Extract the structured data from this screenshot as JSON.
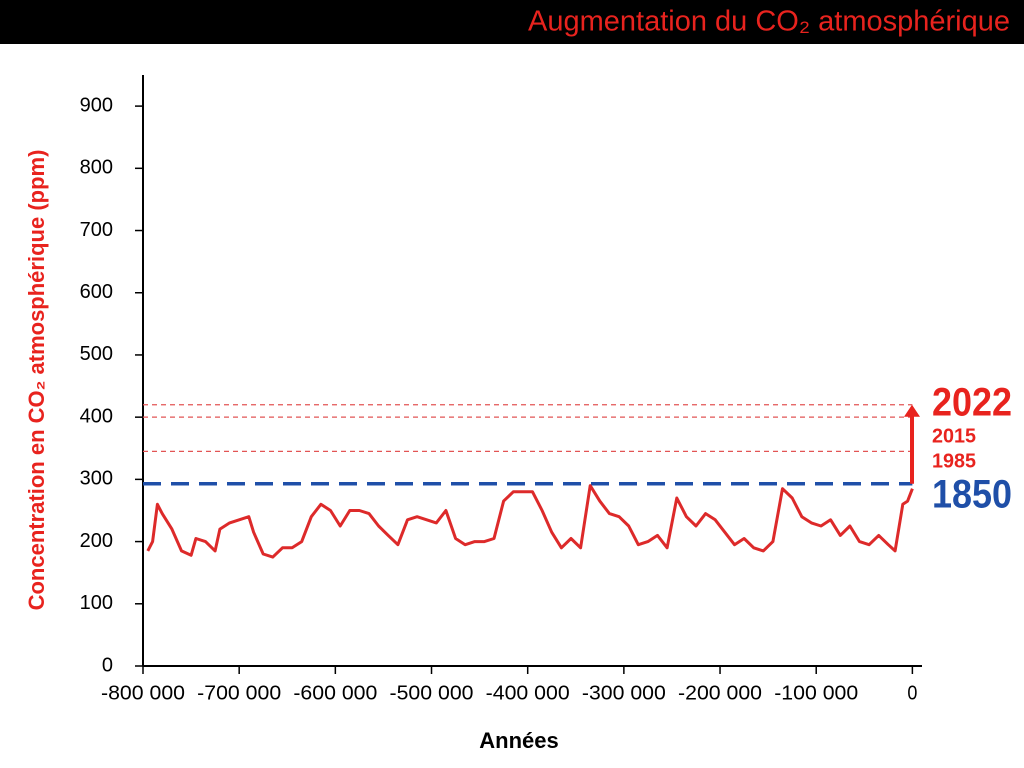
{
  "chart_data": {
    "type": "line",
    "title": "Augmentation du CO₂ atmosphérique",
    "xlabel": "Années",
    "ylabel": "Concentration en CO₂ atmosphérique (ppm)",
    "series": [
      {
        "name": "CO₂",
        "color": "#dd2a2a",
        "x": [
          -795000,
          -790000,
          -785000,
          -780000,
          -770000,
          -760000,
          -750000,
          -745000,
          -735000,
          -725000,
          -720000,
          -710000,
          -700000,
          -690000,
          -685000,
          -675000,
          -665000,
          -655000,
          -645000,
          -635000,
          -625000,
          -615000,
          -605000,
          -595000,
          -585000,
          -575000,
          -565000,
          -555000,
          -545000,
          -535000,
          -525000,
          -515000,
          -505000,
          -495000,
          -485000,
          -475000,
          -465000,
          -455000,
          -445000,
          -435000,
          -425000,
          -415000,
          -405000,
          -395000,
          -385000,
          -375000,
          -365000,
          -355000,
          -345000,
          -335000,
          -325000,
          -315000,
          -305000,
          -295000,
          -285000,
          -275000,
          -265000,
          -255000,
          -245000,
          -235000,
          -225000,
          -215000,
          -205000,
          -195000,
          -185000,
          -175000,
          -165000,
          -155000,
          -145000,
          -135000,
          -125000,
          -115000,
          -105000,
          -95000,
          -85000,
          -75000,
          -65000,
          -55000,
          -45000,
          -35000,
          -25000,
          -18000,
          -10000,
          -5000,
          0
        ],
        "values": [
          185,
          200,
          260,
          245,
          220,
          185,
          178,
          205,
          200,
          185,
          220,
          230,
          235,
          240,
          215,
          180,
          175,
          190,
          190,
          200,
          240,
          260,
          250,
          225,
          250,
          250,
          245,
          225,
          210,
          195,
          235,
          240,
          235,
          230,
          250,
          205,
          195,
          200,
          200,
          205,
          265,
          280,
          280,
          280,
          250,
          215,
          190,
          205,
          190,
          290,
          265,
          245,
          240,
          225,
          195,
          200,
          210,
          190,
          270,
          240,
          225,
          245,
          235,
          215,
          195,
          205,
          190,
          185,
          200,
          285,
          270,
          240,
          230,
          225,
          235,
          210,
          225,
          200,
          195,
          210,
          195,
          185,
          260,
          265,
          285
        ]
      }
    ],
    "reference_lines": [
      {
        "label": "1850",
        "value": 293,
        "color": "#1f4fa8"
      },
      {
        "label": "1985",
        "value": 345,
        "color": "#e25555"
      },
      {
        "label": "2015",
        "value": 400,
        "color": "#e25555"
      },
      {
        "label": "2022",
        "value": 420,
        "color": "#e25555"
      }
    ],
    "xlim": [
      -800000,
      10000
    ],
    "xticks": [
      {
        "value": -800000,
        "label": "-800 000"
      },
      {
        "value": -700000,
        "label": "-700 000"
      },
      {
        "value": -600000,
        "label": "-600 000"
      },
      {
        "value": -500000,
        "label": "-500 000"
      },
      {
        "value": -400000,
        "label": "-400 000"
      },
      {
        "value": -300000,
        "label": "-300 000"
      },
      {
        "value": -200000,
        "label": "-200 000"
      },
      {
        "value": -100000,
        "label": "-100 000"
      },
      0
    ],
    "ylim": [
      0,
      950
    ],
    "yticks": [
      0,
      100,
      200,
      300,
      400,
      500,
      600,
      700,
      800,
      900
    ]
  }
}
